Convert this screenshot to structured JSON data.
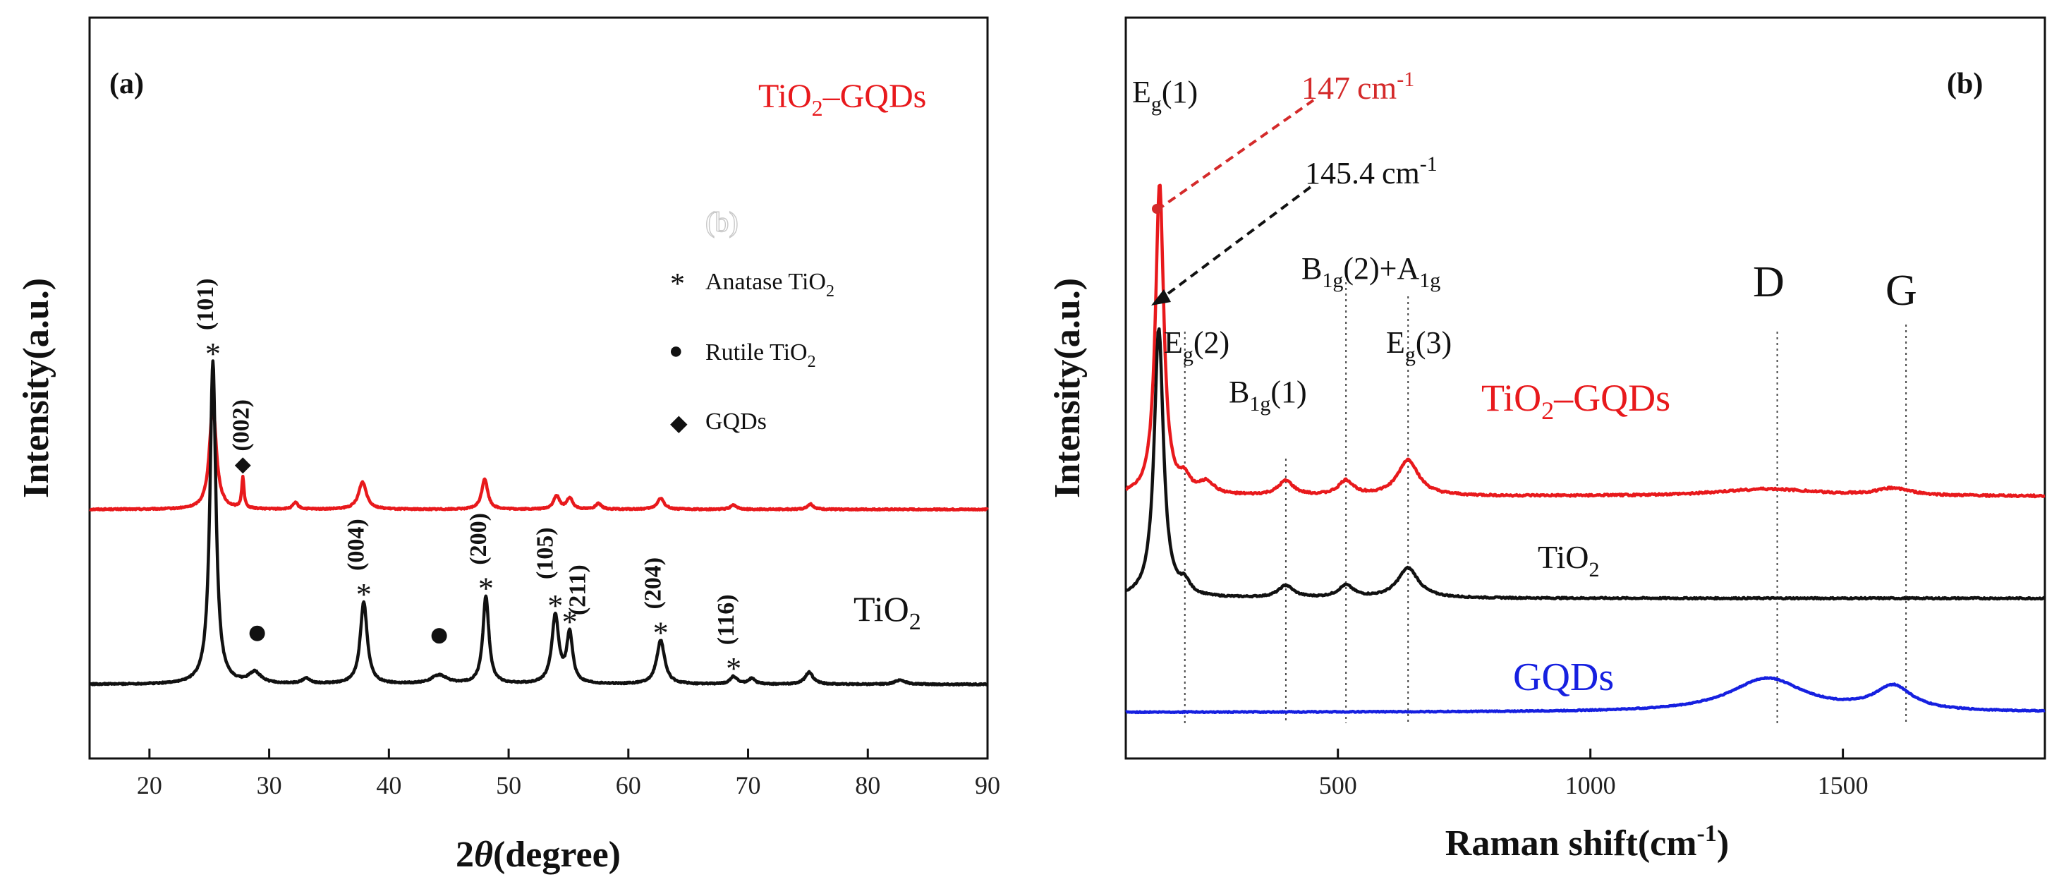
{
  "chart_data": [
    {
      "panel": "a",
      "type": "line",
      "panel_label": "(a)",
      "xlabel": "2θ(degree)",
      "xlabel_italic": "θ",
      "xlabel_pre": "2",
      "xlabel_post": "(degree)",
      "ylabel": "Intensity(a.u.)",
      "xlim": [
        15,
        90
      ],
      "xticks": [
        "20",
        "30",
        "40",
        "50",
        "60",
        "70",
        "80",
        "90"
      ],
      "xtick_values": [
        20,
        30,
        40,
        50,
        60,
        70,
        80,
        90
      ],
      "series": [
        {
          "name": "TiO2–GQDs",
          "color": "#e8191c",
          "baseline": 1.6,
          "noise": 0.006,
          "peaks": [
            [
              25.3,
              0.95,
              0.35
            ],
            [
              27.8,
              0.28,
              0.12
            ],
            [
              32.2,
              0.06,
              0.25
            ],
            [
              37.8,
              0.25,
              0.4
            ],
            [
              48.0,
              0.28,
              0.3
            ],
            [
              54.0,
              0.12,
              0.3
            ],
            [
              55.1,
              0.1,
              0.3
            ],
            [
              57.5,
              0.05,
              0.3
            ],
            [
              62.7,
              0.1,
              0.35
            ],
            [
              68.8,
              0.04,
              0.3
            ],
            [
              75.2,
              0.05,
              0.3
            ]
          ]
        },
        {
          "name": "TiO2",
          "color": "#111111",
          "baseline": 0.0,
          "noise": 0.006,
          "peaks": [
            [
              25.3,
              2.95,
              0.3
            ],
            [
              28.8,
              0.1,
              0.6
            ],
            [
              33.1,
              0.05,
              0.4
            ],
            [
              37.9,
              0.75,
              0.35
            ],
            [
              44.2,
              0.08,
              0.8
            ],
            [
              48.1,
              0.8,
              0.3
            ],
            [
              53.9,
              0.62,
              0.35
            ],
            [
              55.1,
              0.45,
              0.3
            ],
            [
              62.7,
              0.4,
              0.4
            ],
            [
              68.8,
              0.07,
              0.35
            ],
            [
              70.3,
              0.05,
              0.35
            ],
            [
              75.1,
              0.11,
              0.4
            ],
            [
              82.7,
              0.04,
              0.5
            ]
          ]
        }
      ],
      "series_labels": {
        "tio2_gqds_pre": "TiO",
        "tio2_gqds_sub": "2",
        "tio2_gqds_post": "–GQDs",
        "tio2_pre": "TiO",
        "tio2_sub": "2"
      },
      "peak_labels": [
        {
          "hkl": "(002)",
          "x": 27.8,
          "series": 0,
          "marker": "◆"
        },
        {
          "hkl": "(101)",
          "x": 25.3,
          "series": 1,
          "marker": "*"
        },
        {
          "hkl": "(004)",
          "x": 37.9,
          "series": 1,
          "marker": "*"
        },
        {
          "hkl": "(200)",
          "x": 48.1,
          "series": 1,
          "marker": "*"
        },
        {
          "hkl": "(105)",
          "x": 53.9,
          "series": 1,
          "marker": "*"
        },
        {
          "hkl": "(211)",
          "x": 55.1,
          "series": 1,
          "marker": "*"
        },
        {
          "hkl": "(204)",
          "x": 62.7,
          "series": 1,
          "marker": "*"
        },
        {
          "hkl": "(116)",
          "x": 68.8,
          "series": 1,
          "marker": "*"
        }
      ],
      "rutile_markers": [
        29.0,
        44.2
      ],
      "legend": [
        {
          "symbol": "*",
          "pre": "Anatase TiO",
          "sub": "2"
        },
        {
          "symbol": "●",
          "pre": "Rutile TiO",
          "sub": "2"
        },
        {
          "symbol": "◆",
          "pre": "GQDs",
          "sub": ""
        }
      ],
      "watermark": "(b)"
    },
    {
      "panel": "b",
      "type": "line",
      "panel_label": "(b)",
      "xlabel_pre": "Raman shift(cm",
      "xlabel_sup": "-1",
      "xlabel_post": ")",
      "ylabel": "Intensity(a.u.)",
      "xlim": [
        80,
        1900
      ],
      "xticks": [
        "500",
        "1000",
        "1500"
      ],
      "xtick_values": [
        500,
        1000,
        1500
      ],
      "series": [
        {
          "name": "TiO2–GQDs",
          "color": "#e8191c",
          "baseline": 1.85,
          "noise": 0.008,
          "peaks": [
            [
              147,
              2.6,
              10
            ],
            [
              197,
              0.12,
              12
            ],
            [
              240,
              0.1,
              18
            ],
            [
              397,
              0.12,
              18
            ],
            [
              516,
              0.12,
              18
            ],
            [
              639,
              0.3,
              25
            ],
            [
              1350,
              0.06,
              120
            ],
            [
              1600,
              0.06,
              40
            ]
          ]
        },
        {
          "name": "TiO2",
          "color": "#111111",
          "baseline": 1.0,
          "noise": 0.006,
          "peaks": [
            [
              145.4,
              2.25,
              11
            ],
            [
              197,
              0.1,
              12
            ],
            [
              397,
              0.1,
              18
            ],
            [
              516,
              0.1,
              18
            ],
            [
              639,
              0.25,
              25
            ]
          ]
        },
        {
          "name": "GQDs",
          "color": "#1620e0",
          "baseline": 0.05,
          "noise": 0.004,
          "peaks": [
            [
              1350,
              0.28,
              90
            ],
            [
              1600,
              0.2,
              45
            ]
          ]
        }
      ],
      "series_labels": {
        "tio2_gqds_pre": "TiO",
        "tio2_gqds_sub": "2",
        "tio2_gqds_post": "–GQDs",
        "tio2_pre": "TiO",
        "tio2_sub": "2",
        "gqds": "GQDs"
      },
      "mode_labels": [
        {
          "base": "E",
          "sub": "g",
          "post": "(1)"
        },
        {
          "base": "E",
          "sub": "g",
          "post": "(2)"
        },
        {
          "base": "B",
          "sub": "1g",
          "post": "(1)"
        },
        {
          "base": "B",
          "sub": "1g",
          "post": "(2)+A",
          "sub2": "1g"
        },
        {
          "base": "E",
          "sub": "g",
          "post": "(3)"
        },
        {
          "base": "D"
        },
        {
          "base": "G"
        }
      ],
      "dotted_lines": [
        197,
        397,
        516,
        639,
        1370,
        1625
      ],
      "annotations": [
        {
          "value": "147",
          "unit": "cm",
          "sup": "-1",
          "color": "#d42a2a"
        },
        {
          "value": "145.4",
          "unit": "cm",
          "sup": "-1",
          "color": "#111111"
        }
      ]
    }
  ]
}
